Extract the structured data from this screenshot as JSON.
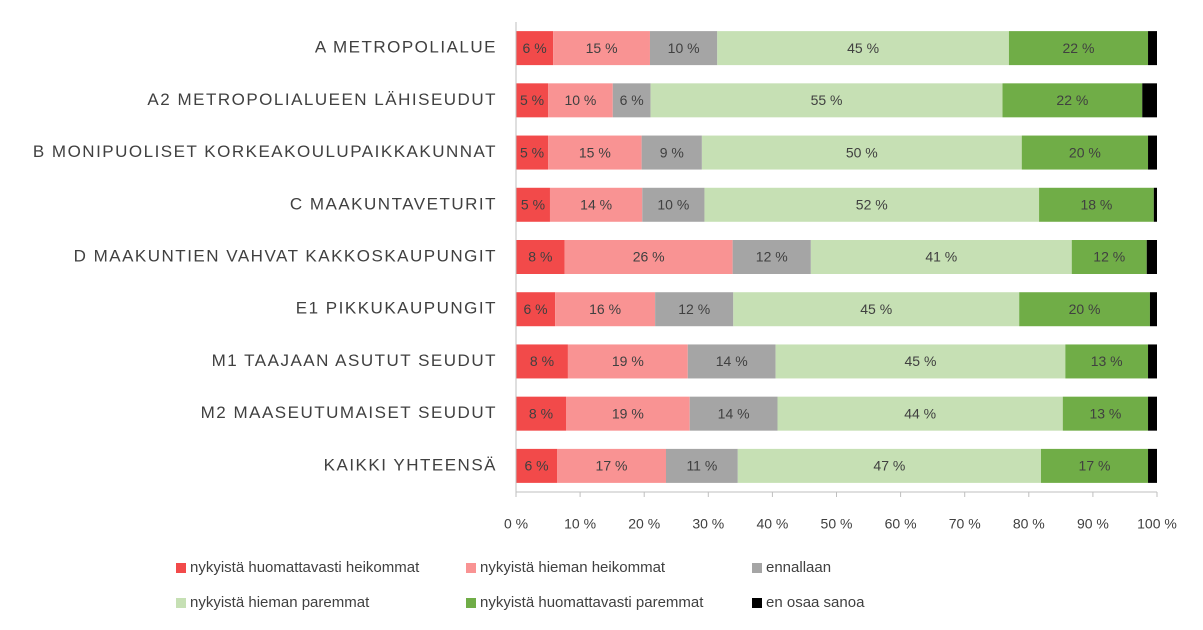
{
  "chart_data": {
    "type": "stacked_bar_horizontal",
    "categories": [
      "A METROPOLIALUE",
      "A2 METROPOLIALUEEN LÄHISEUDUT",
      "B MONIPUOLISET KORKEAKOULUPAIKKAKUNNAT",
      "C MAAKUNTAVETURIT",
      "D MAAKUNTIEN VAHVAT KAKKOSKAUPUNGIT",
      "E1 PIKKUKAUPUNGIT",
      "M1 TAAJAAN ASUTUT SEUDUT",
      "M2 MAASEUTUMAISET SEUDUT",
      "KAIKKI YHTEENSÄ"
    ],
    "series": [
      {
        "name": "nykyistä huomattavasti heikommat",
        "color": "#f24a4a",
        "values": [
          5.8,
          5.0,
          5.0,
          5.3,
          7.6,
          6.1,
          8.1,
          7.8,
          6.4
        ],
        "value_labels": [
          "6 %",
          "5 %",
          "5 %",
          "5 %",
          "8 %",
          "6 %",
          "8 %",
          "8 %",
          "6 %"
        ]
      },
      {
        "name": "nykyistä hieman heikommat",
        "color": "#f99393",
        "values": [
          15.1,
          10.1,
          14.6,
          14.4,
          26.2,
          15.6,
          18.7,
          19.3,
          17.0
        ],
        "value_labels": [
          "15 %",
          "10 %",
          "15 %",
          "14 %",
          "26 %",
          "16 %",
          "19 %",
          "19 %",
          "17 %"
        ]
      },
      {
        "name": "ennallaan",
        "color": "#a5a5a5",
        "values": [
          10.5,
          5.9,
          9.4,
          9.7,
          12.2,
          12.2,
          13.7,
          13.7,
          11.2
        ],
        "value_labels": [
          "10 %",
          "6 %",
          "9 %",
          "10 %",
          "12 %",
          "12 %",
          "14 %",
          "14 %",
          "11 %"
        ]
      },
      {
        "name": "nykyistä hieman paremmat",
        "color": "#c6e0b4",
        "values": [
          45.5,
          54.9,
          49.9,
          52.2,
          40.7,
          44.6,
          45.2,
          44.5,
          47.3
        ],
        "value_labels": [
          "45 %",
          "55 %",
          "50 %",
          "52 %",
          "41 %",
          "45 %",
          "45 %",
          "44 %",
          "47 %"
        ]
      },
      {
        "name": "nykyistä huomattavasti paremmat",
        "color": "#70ad47",
        "values": [
          21.7,
          21.8,
          19.7,
          17.9,
          11.7,
          20.4,
          12.9,
          13.3,
          16.7
        ],
        "value_labels": [
          "22 %",
          "22 %",
          "20 %",
          "18 %",
          "12 %",
          "20 %",
          "13 %",
          "13 %",
          "17 %"
        ]
      },
      {
        "name": "en osaa sanoa",
        "color": "#000000",
        "values": [
          1.4,
          2.3,
          1.4,
          0.5,
          1.6,
          1.1,
          1.4,
          1.4,
          1.4
        ]
      }
    ],
    "xlim": [
      0,
      100
    ],
    "xticks": [
      {
        "value": 0,
        "label": "0 %"
      },
      {
        "value": 10,
        "label": "10 %"
      },
      {
        "value": 20,
        "label": "20 %"
      },
      {
        "value": 30,
        "label": "30 %"
      },
      {
        "value": 40,
        "label": "40 %"
      },
      {
        "value": 50,
        "label": "50 %"
      },
      {
        "value": 60,
        "label": "60 %"
      },
      {
        "value": 70,
        "label": "70 %"
      },
      {
        "value": 80,
        "label": "80 %"
      },
      {
        "value": 90,
        "label": "90 %"
      },
      {
        "value": 100,
        "label": "100 %"
      }
    ],
    "legend": "bottom"
  }
}
